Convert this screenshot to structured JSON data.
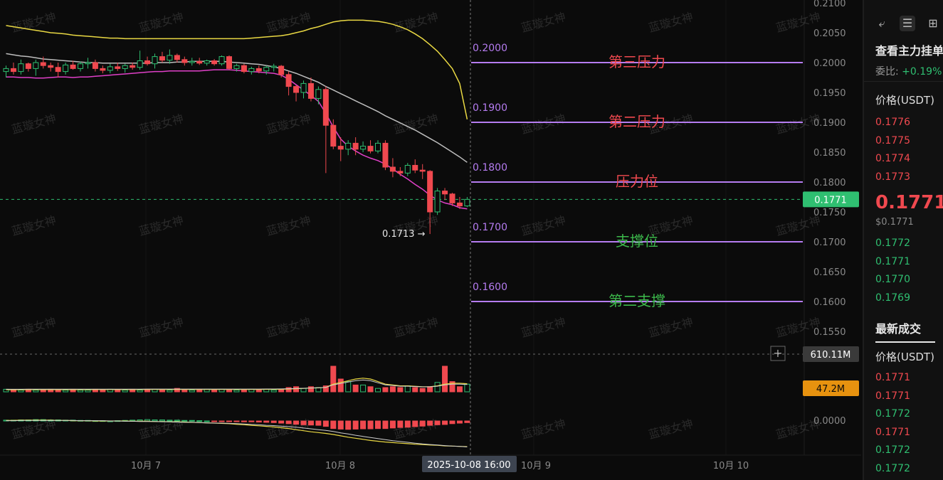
{
  "chart_data": {
    "type": "candlestick",
    "symbol_price_label": "0.1771",
    "price_axis": {
      "ylim": [
        0.15,
        0.21
      ],
      "ticks": [
        "0.2100",
        "0.2050",
        "0.2000",
        "0.1950",
        "0.1900",
        "0.1850",
        "0.1800",
        "0.1750",
        "0.1700",
        "0.1650",
        "0.1600",
        "0.1550"
      ]
    },
    "x_labels": [
      "10月 7",
      "10月 8",
      "10月 9",
      "10月 10"
    ],
    "crosshair_time": "2025-10-08 16:00",
    "low_marker": "0.1713 →",
    "levels": [
      {
        "price": 0.2,
        "value_label": "0.2000",
        "name": "第三压力",
        "color": "#f0494f"
      },
      {
        "price": 0.19,
        "value_label": "0.1900",
        "name": "第二压力",
        "color": "#f0494f"
      },
      {
        "price": 0.18,
        "value_label": "0.1800",
        "name": "压力位",
        "color": "#f0494f"
      },
      {
        "price": 0.17,
        "value_label": "0.1700",
        "name": "支撑位",
        "color": "#3cb94b"
      },
      {
        "price": 0.16,
        "value_label": "0.1600",
        "name": "第二支撑",
        "color": "#3cb94b"
      }
    ],
    "candles": [
      [
        0.1985,
        0.1995,
        0.1975,
        0.199
      ],
      [
        0.199,
        0.2,
        0.198,
        0.1985
      ],
      [
        0.1985,
        0.2005,
        0.198,
        0.1998
      ],
      [
        0.1998,
        0.2,
        0.1985,
        0.199
      ],
      [
        0.199,
        0.2005,
        0.1978,
        0.2
      ],
      [
        0.2,
        0.201,
        0.199,
        0.1995
      ],
      [
        0.1995,
        0.2,
        0.1985,
        0.1992
      ],
      [
        0.1992,
        0.2,
        0.1975,
        0.1985
      ],
      [
        0.1985,
        0.2,
        0.198,
        0.1996
      ],
      [
        0.1996,
        0.2003,
        0.1988,
        0.199
      ],
      [
        0.199,
        0.2002,
        0.1985,
        0.1998
      ],
      [
        0.1998,
        0.2008,
        0.199,
        0.2
      ],
      [
        0.2,
        0.2005,
        0.1985,
        0.199
      ],
      [
        0.199,
        0.1995,
        0.1982,
        0.1987
      ],
      [
        0.1987,
        0.1998,
        0.1982,
        0.1993
      ],
      [
        0.1993,
        0.2,
        0.1986,
        0.199
      ],
      [
        0.199,
        0.1998,
        0.1983,
        0.1995
      ],
      [
        0.1995,
        0.2,
        0.1988,
        0.1992
      ],
      [
        0.1992,
        0.202,
        0.1988,
        0.2003
      ],
      [
        0.2003,
        0.201,
        0.1995,
        0.1998
      ],
      [
        0.1998,
        0.2015,
        0.199,
        0.201
      ],
      [
        0.201,
        0.2018,
        0.2,
        0.2004
      ],
      [
        0.2004,
        0.2022,
        0.1998,
        0.2012
      ],
      [
        0.2012,
        0.2015,
        0.2,
        0.2005
      ],
      [
        0.2005,
        0.201,
        0.1995,
        0.2
      ],
      [
        0.2,
        0.2008,
        0.1995,
        0.2002
      ],
      [
        0.2002,
        0.2008,
        0.1996,
        0.1999
      ],
      [
        0.1999,
        0.2005,
        0.1995,
        0.2003
      ],
      [
        0.2003,
        0.2006,
        0.1995,
        0.1998
      ],
      [
        0.1998,
        0.2012,
        0.1995,
        0.201
      ],
      [
        0.201,
        0.2012,
        0.1988,
        0.199
      ],
      [
        0.199,
        0.1998,
        0.1985,
        0.1995
      ],
      [
        0.1995,
        0.1998,
        0.1982,
        0.1985
      ],
      [
        0.1985,
        0.1993,
        0.198,
        0.199
      ],
      [
        0.199,
        0.1995,
        0.1982,
        0.1986
      ],
      [
        0.1986,
        0.1995,
        0.198,
        0.1992
      ],
      [
        0.1992,
        0.1998,
        0.1985,
        0.1994
      ],
      [
        0.1994,
        0.1996,
        0.1975,
        0.198
      ],
      [
        0.198,
        0.1985,
        0.1945,
        0.196
      ],
      [
        0.196,
        0.1962,
        0.1935,
        0.195
      ],
      [
        0.195,
        0.197,
        0.194,
        0.1965
      ],
      [
        0.1965,
        0.1975,
        0.1935,
        0.194
      ],
      [
        0.194,
        0.196,
        0.193,
        0.1955
      ],
      [
        0.1955,
        0.196,
        0.1815,
        0.1895
      ],
      [
        0.1895,
        0.1905,
        0.1855,
        0.186
      ],
      [
        0.186,
        0.1875,
        0.1835,
        0.1855
      ],
      [
        0.1855,
        0.187,
        0.1845,
        0.1865
      ],
      [
        0.1865,
        0.1875,
        0.1845,
        0.1855
      ],
      [
        0.1855,
        0.1868,
        0.185,
        0.186
      ],
      [
        0.186,
        0.187,
        0.1848,
        0.1852
      ],
      [
        0.1852,
        0.187,
        0.1848,
        0.1865
      ],
      [
        0.1865,
        0.187,
        0.182,
        0.1825
      ],
      [
        0.1825,
        0.184,
        0.1808,
        0.1818
      ],
      [
        0.1818,
        0.1825,
        0.181,
        0.1815
      ],
      [
        0.1815,
        0.1832,
        0.181,
        0.1828
      ],
      [
        0.1828,
        0.1838,
        0.1815,
        0.182
      ],
      [
        0.182,
        0.183,
        0.1805,
        0.1818
      ],
      [
        0.1818,
        0.182,
        0.1713,
        0.175
      ],
      [
        0.175,
        0.179,
        0.1745,
        0.1785
      ],
      [
        0.1785,
        0.179,
        0.177,
        0.178
      ],
      [
        0.178,
        0.1782,
        0.176,
        0.1765
      ],
      [
        0.1765,
        0.1775,
        0.1755,
        0.176
      ],
      [
        0.176,
        0.1775,
        0.1758,
        0.1771
      ]
    ],
    "ma_fast": [
      0.1976,
      0.1976,
      0.1975,
      0.1975,
      0.1974,
      0.1974,
      0.1975,
      0.1976,
      0.1976,
      0.1975,
      0.1976,
      0.1976,
      0.1977,
      0.1978,
      0.1979,
      0.198,
      0.1981,
      0.1982,
      0.1983,
      0.1984,
      0.1985,
      0.1985,
      0.1986,
      0.1986,
      0.1986,
      0.1986,
      0.1986,
      0.1987,
      0.1988,
      0.1988,
      0.1988,
      0.1987,
      0.1986,
      0.1985,
      0.1984,
      0.1983,
      0.1982,
      0.1979,
      0.1972,
      0.1963,
      0.1954,
      0.1945,
      0.1935,
      0.1915,
      0.1892,
      0.1872,
      0.186,
      0.1852,
      0.1845,
      0.184,
      0.1836,
      0.183,
      0.1822,
      0.1813,
      0.1805,
      0.1796,
      0.1788,
      0.1778,
      0.177,
      0.1765,
      0.1762,
      0.1757,
      0.1755
    ],
    "ma_mid": [
      0.2015,
      0.2013,
      0.2011,
      0.201,
      0.2008,
      0.2006,
      0.2005,
      0.2004,
      0.2003,
      0.2002,
      0.2001,
      0.2,
      0.2,
      0.1999,
      0.1999,
      0.1999,
      0.1999,
      0.1999,
      0.1999,
      0.1999,
      0.2,
      0.2,
      0.2,
      0.2001,
      0.2001,
      0.2002,
      0.2002,
      0.2002,
      0.2002,
      0.2002,
      0.2001,
      0.2,
      0.1999,
      0.1998,
      0.1997,
      0.1995,
      0.1993,
      0.199,
      0.1986,
      0.1982,
      0.1977,
      0.1972,
      0.1967,
      0.196,
      0.1954,
      0.1948,
      0.1942,
      0.1936,
      0.193,
      0.1924,
      0.1918,
      0.1911,
      0.1905,
      0.1899,
      0.1893,
      0.1887,
      0.188,
      0.1873,
      0.1866,
      0.1858,
      0.185,
      0.1842,
      0.1833
    ],
    "bb_upper": [
      0.2062,
      0.206,
      0.2058,
      0.2056,
      0.2054,
      0.2052,
      0.205,
      0.2049,
      0.2048,
      0.2046,
      0.2045,
      0.2044,
      0.2043,
      0.2042,
      0.2041,
      0.2041,
      0.204,
      0.204,
      0.204,
      0.204,
      0.204,
      0.204,
      0.204,
      0.204,
      0.204,
      0.204,
      0.204,
      0.204,
      0.204,
      0.204,
      0.204,
      0.204,
      0.204,
      0.2041,
      0.2042,
      0.2043,
      0.2044,
      0.2045,
      0.2047,
      0.205,
      0.2053,
      0.2057,
      0.206,
      0.2064,
      0.2068,
      0.207,
      0.2071,
      0.2071,
      0.2071,
      0.207,
      0.2069,
      0.2067,
      0.2064,
      0.206,
      0.2055,
      0.2048,
      0.204,
      0.203,
      0.2019,
      0.2005,
      0.199,
      0.1965,
      0.1905
    ],
    "volume": {
      "max": 40,
      "bars": [
        3,
        2,
        2,
        3,
        2,
        2,
        3,
        2,
        2,
        3,
        2,
        2,
        3,
        2,
        3,
        2,
        2,
        3,
        2,
        3,
        3,
        2,
        2,
        4,
        2,
        2,
        3,
        3,
        2,
        3,
        2,
        2,
        2,
        3,
        2,
        3,
        2,
        3,
        5,
        6,
        4,
        6,
        5,
        7,
        30,
        15,
        12,
        8,
        8,
        6,
        4,
        5,
        6,
        5,
        7,
        5,
        4,
        6,
        11,
        30,
        12,
        6,
        9
      ],
      "ma": [
        2.5,
        2.5,
        2.5,
        2.6,
        2.6,
        2.6,
        2.6,
        2.6,
        2.6,
        2.6,
        2.6,
        2.6,
        2.7,
        2.7,
        2.7,
        2.7,
        2.7,
        2.7,
        2.7,
        2.8,
        2.8,
        2.8,
        2.8,
        2.8,
        2.8,
        2.8,
        2.8,
        2.8,
        2.8,
        2.8,
        2.8,
        2.8,
        2.8,
        2.8,
        2.8,
        2.9,
        2.9,
        3.0,
        3.3,
        3.7,
        4.0,
        4.4,
        4.7,
        5.2,
        9.0,
        11.0,
        13.0,
        15.0,
        16.0,
        15.0,
        12.0,
        9.0,
        8.0,
        7.0,
        7.0,
        6.5,
        6.0,
        6.0,
        7.0,
        9.0,
        10.0,
        10.0,
        9.5
      ],
      "label_total": "610.11M",
      "label_last": "47.2M"
    },
    "macd": {
      "axis_label": "0.0000",
      "hist": [
        0.3,
        0.3,
        0.4,
        0.4,
        0.5,
        0.5,
        0.4,
        0.4,
        0.3,
        0.3,
        0.2,
        0.2,
        0.1,
        0.1,
        0.0,
        0.1,
        0.2,
        0.3,
        0.4,
        0.5,
        0.4,
        0.4,
        0.3,
        0.3,
        0.2,
        0.2,
        0.1,
        0.0,
        -0.1,
        -0.1,
        -0.2,
        -0.2,
        -0.3,
        -0.3,
        -0.4,
        -0.5,
        -0.6,
        -0.8,
        -1.0,
        -1.2,
        -1.4,
        -1.5,
        -1.6,
        -2.0,
        -2.8,
        -3.0,
        -3.1,
        -3.0,
        -2.9,
        -2.9,
        -2.8,
        -2.8,
        -2.6,
        -2.4,
        -2.3,
        -2.1,
        -1.9,
        -1.6,
        -1.4,
        -1.3,
        -1.0,
        -0.8,
        -0.6
      ],
      "dif": [
        0.2,
        0.2,
        0.3,
        0.3,
        0.3,
        0.3,
        0.3,
        0.2,
        0.2,
        0.1,
        0.1,
        0.1,
        0.0,
        0.0,
        0.0,
        0.0,
        0.0,
        -0.1,
        -0.1,
        -0.1,
        -0.2,
        -0.2,
        -0.3,
        -0.3,
        -0.4,
        -0.5,
        -0.6,
        -0.7,
        -0.8,
        -0.9,
        -1.0,
        -1.2,
        -1.4,
        -1.6,
        -1.8,
        -2.0,
        -2.2,
        -2.5,
        -2.8,
        -3.2,
        -3.6,
        -4.0,
        -4.3,
        -4.6,
        -5.0,
        -5.5,
        -6.0,
        -6.4,
        -6.8,
        -7.2,
        -7.5,
        -7.8,
        -8.0,
        -8.2,
        -8.4,
        -8.6,
        -8.7,
        -8.9,
        -9.0,
        -9.2,
        -9.3,
        -9.4,
        -9.5
      ],
      "dea": [
        0.1,
        0.1,
        0.2,
        0.2,
        0.2,
        0.2,
        0.2,
        0.2,
        0.2,
        0.2,
        0.1,
        0.1,
        0.1,
        0.1,
        0.0,
        0.0,
        -0.1,
        -0.1,
        -0.2,
        -0.2,
        -0.2,
        -0.3,
        -0.3,
        -0.4,
        -0.5,
        -0.5,
        -0.6,
        -0.7,
        -0.8,
        -0.8,
        -0.9,
        -1.0,
        -1.1,
        -1.3,
        -1.4,
        -1.6,
        -1.7,
        -1.9,
        -2.1,
        -2.3,
        -2.6,
        -2.9,
        -3.2,
        -3.5,
        -3.9,
        -4.4,
        -4.8,
        -5.3,
        -5.7,
        -6.1,
        -6.5,
        -6.9,
        -7.3,
        -7.6,
        -7.9,
        -8.2,
        -8.5,
        -8.7,
        -8.9,
        -9.1,
        -9.3,
        -9.4,
        -9.6
      ]
    },
    "watermark": "蓝璇女神"
  },
  "side": {
    "title": "查看主力挂单",
    "ratio_label": "委比:",
    "ratio_value": "+0.19%",
    "header1": "价格(USDT)",
    "asks": [
      "0.1776",
      "0.1775",
      "0.1774",
      "0.1773"
    ],
    "last_price": "0.1771",
    "last_usd": "$0.1771",
    "bids": [
      "0.1772",
      "0.1771",
      "0.1770",
      "0.1769"
    ],
    "latest_title": "最新成交",
    "header2": "价格(USDT)",
    "trades": [
      {
        "p": "0.1771",
        "c": "red"
      },
      {
        "p": "0.1771",
        "c": "red"
      },
      {
        "p": "0.1772",
        "c": "green"
      },
      {
        "p": "0.1771",
        "c": "red"
      },
      {
        "p": "0.1772",
        "c": "green"
      },
      {
        "p": "0.1772",
        "c": "green"
      }
    ]
  }
}
